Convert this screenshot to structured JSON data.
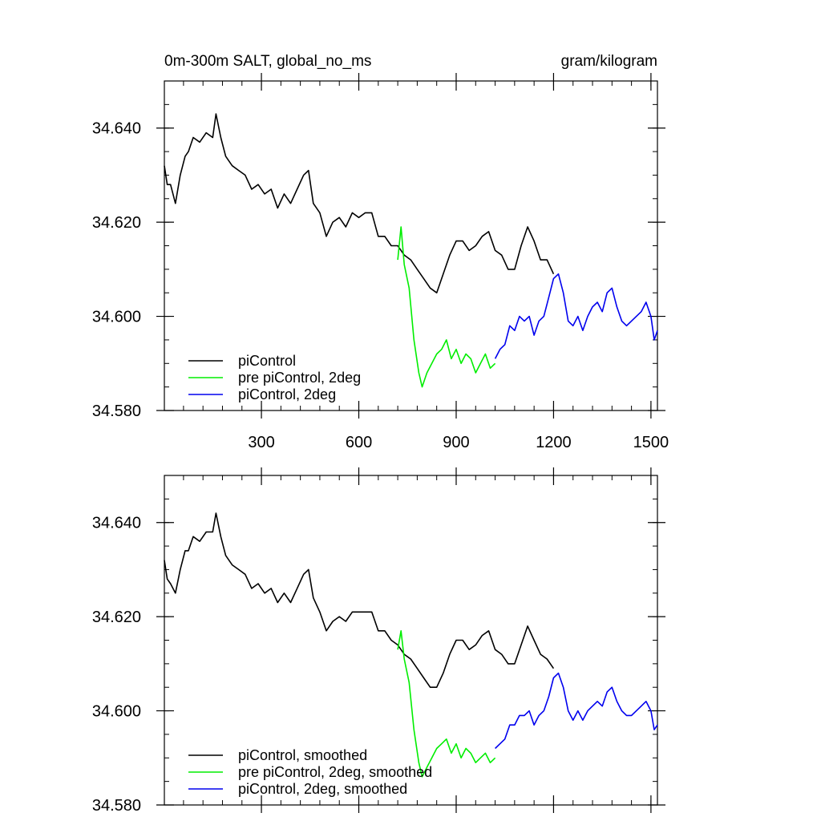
{
  "chart_data": [
    {
      "type": "line",
      "title_left": "0m-300m SALT, global_no_ms",
      "title_right": "gram/kilogram",
      "xlim": [
        1,
        1520
      ],
      "ylim": [
        34.58,
        34.65
      ],
      "x_ticks": [
        300,
        600,
        900,
        1200,
        1500
      ],
      "x_tick_labels": [
        "300",
        "600",
        "900",
        "1200",
        "1500"
      ],
      "y_ticks": [
        34.58,
        34.6,
        34.62,
        34.64
      ],
      "y_tick_labels": [
        "34.580",
        "34.600",
        "34.620",
        "34.640"
      ],
      "legend_position": "bottom-left",
      "series": [
        {
          "name": "piControl",
          "color": "#000000",
          "x": [
            1,
            10,
            20,
            35,
            50,
            65,
            75,
            90,
            110,
            130,
            150,
            160,
            175,
            190,
            210,
            230,
            250,
            270,
            290,
            310,
            330,
            350,
            370,
            390,
            410,
            430,
            445,
            460,
            480,
            500,
            520,
            540,
            560,
            580,
            600,
            620,
            640,
            660,
            680,
            700,
            720,
            740,
            760,
            780,
            800,
            820,
            840,
            860,
            880,
            900,
            920,
            940,
            960,
            980,
            1000,
            1020,
            1040,
            1060,
            1080,
            1100,
            1120,
            1140,
            1160,
            1180,
            1200
          ],
          "y": [
            34.632,
            34.628,
            34.628,
            34.624,
            34.63,
            34.634,
            34.635,
            34.638,
            34.637,
            34.639,
            34.638,
            34.643,
            34.638,
            34.634,
            34.632,
            34.631,
            34.63,
            34.627,
            34.628,
            34.626,
            34.627,
            34.623,
            34.626,
            34.624,
            34.627,
            34.63,
            34.631,
            34.624,
            34.622,
            34.617,
            34.62,
            34.621,
            34.619,
            34.622,
            34.621,
            34.622,
            34.622,
            34.617,
            34.617,
            34.615,
            34.615,
            34.613,
            34.612,
            34.61,
            34.608,
            34.606,
            34.605,
            34.609,
            34.613,
            34.616,
            34.616,
            34.614,
            34.615,
            34.617,
            34.618,
            34.614,
            34.613,
            34.61,
            34.61,
            34.615,
            34.619,
            34.616,
            34.612,
            34.612,
            34.609
          ]
        },
        {
          "name": "pre piControl, 2deg",
          "color": "#00ee00",
          "x": [
            720,
            730,
            740,
            755,
            770,
            785,
            795,
            810,
            825,
            840,
            855,
            870,
            885,
            900,
            915,
            930,
            945,
            960,
            975,
            990,
            1005,
            1020
          ],
          "y": [
            34.612,
            34.619,
            34.611,
            34.606,
            34.595,
            34.588,
            34.585,
            34.588,
            34.59,
            34.592,
            34.593,
            34.595,
            34.591,
            34.593,
            34.59,
            34.592,
            34.591,
            34.588,
            34.59,
            34.592,
            34.589,
            34.59
          ]
        },
        {
          "name": "piControl, 2deg",
          "color": "#0000ee",
          "x": [
            1020,
            1035,
            1050,
            1065,
            1080,
            1095,
            1110,
            1125,
            1140,
            1155,
            1170,
            1185,
            1200,
            1215,
            1230,
            1245,
            1260,
            1275,
            1290,
            1305,
            1320,
            1335,
            1350,
            1365,
            1380,
            1395,
            1410,
            1425,
            1440,
            1455,
            1470,
            1485,
            1500,
            1510,
            1520
          ],
          "y": [
            34.591,
            34.593,
            34.594,
            34.598,
            34.597,
            34.6,
            34.599,
            34.6,
            34.596,
            34.599,
            34.6,
            34.604,
            34.608,
            34.609,
            34.605,
            34.599,
            34.598,
            34.6,
            34.597,
            34.6,
            34.602,
            34.603,
            34.601,
            34.605,
            34.606,
            34.602,
            34.599,
            34.598,
            34.599,
            34.6,
            34.601,
            34.603,
            34.6,
            34.595,
            34.597
          ]
        }
      ]
    },
    {
      "type": "line",
      "xlim": [
        1,
        1520
      ],
      "ylim": [
        34.58,
        34.65
      ],
      "x_ticks": [
        300,
        600,
        900,
        1200,
        1500
      ],
      "y_ticks": [
        34.58,
        34.6,
        34.62,
        34.64
      ],
      "y_tick_labels": [
        "34.580",
        "34.600",
        "34.620",
        "34.640"
      ],
      "legend_position": "bottom-left",
      "series": [
        {
          "name": "piControl, smoothed",
          "color": "#000000",
          "x": [
            1,
            10,
            20,
            35,
            50,
            65,
            75,
            90,
            110,
            130,
            150,
            160,
            175,
            190,
            210,
            230,
            250,
            270,
            290,
            310,
            330,
            350,
            370,
            390,
            410,
            430,
            445,
            460,
            480,
            500,
            520,
            540,
            560,
            580,
            600,
            620,
            640,
            660,
            680,
            700,
            720,
            740,
            760,
            780,
            800,
            820,
            840,
            860,
            880,
            900,
            920,
            940,
            960,
            980,
            1000,
            1020,
            1040,
            1060,
            1080,
            1100,
            1120,
            1140,
            1160,
            1180,
            1200
          ],
          "y": [
            34.632,
            34.628,
            34.627,
            34.625,
            34.63,
            34.634,
            34.634,
            34.637,
            34.636,
            34.638,
            34.638,
            34.642,
            34.637,
            34.633,
            34.631,
            34.63,
            34.629,
            34.626,
            34.627,
            34.625,
            34.626,
            34.623,
            34.625,
            34.623,
            34.626,
            34.629,
            34.63,
            34.624,
            34.621,
            34.617,
            34.619,
            34.62,
            34.619,
            34.621,
            34.621,
            34.621,
            34.621,
            34.617,
            34.617,
            34.615,
            34.614,
            34.612,
            34.611,
            34.609,
            34.607,
            34.605,
            34.605,
            34.608,
            34.612,
            34.615,
            34.615,
            34.613,
            34.614,
            34.616,
            34.617,
            34.613,
            34.612,
            34.61,
            34.61,
            34.614,
            34.618,
            34.615,
            34.612,
            34.611,
            34.609
          ]
        },
        {
          "name": "pre piControl, 2deg, smoothed",
          "color": "#00ee00",
          "x": [
            720,
            730,
            740,
            755,
            770,
            785,
            795,
            810,
            825,
            840,
            855,
            870,
            885,
            900,
            915,
            930,
            945,
            960,
            975,
            990,
            1005,
            1020
          ],
          "y": [
            34.613,
            34.617,
            34.611,
            34.606,
            34.596,
            34.589,
            34.586,
            34.588,
            34.59,
            34.592,
            34.593,
            34.594,
            34.591,
            34.593,
            34.59,
            34.592,
            34.591,
            34.589,
            34.59,
            34.591,
            34.589,
            34.59
          ]
        },
        {
          "name": "piControl, 2deg, smoothed",
          "color": "#0000ee",
          "x": [
            1020,
            1035,
            1050,
            1065,
            1080,
            1095,
            1110,
            1125,
            1140,
            1155,
            1170,
            1185,
            1200,
            1215,
            1230,
            1245,
            1260,
            1275,
            1290,
            1305,
            1320,
            1335,
            1350,
            1365,
            1380,
            1395,
            1410,
            1425,
            1440,
            1455,
            1470,
            1485,
            1500,
            1510,
            1520
          ],
          "y": [
            34.592,
            34.593,
            34.594,
            34.597,
            34.597,
            34.599,
            34.599,
            34.6,
            34.597,
            34.599,
            34.6,
            34.603,
            34.607,
            34.608,
            34.605,
            34.6,
            34.598,
            34.6,
            34.598,
            34.6,
            34.601,
            34.602,
            34.601,
            34.604,
            34.605,
            34.602,
            34.6,
            34.599,
            34.599,
            34.6,
            34.601,
            34.602,
            34.6,
            34.596,
            34.597
          ]
        }
      ]
    }
  ]
}
